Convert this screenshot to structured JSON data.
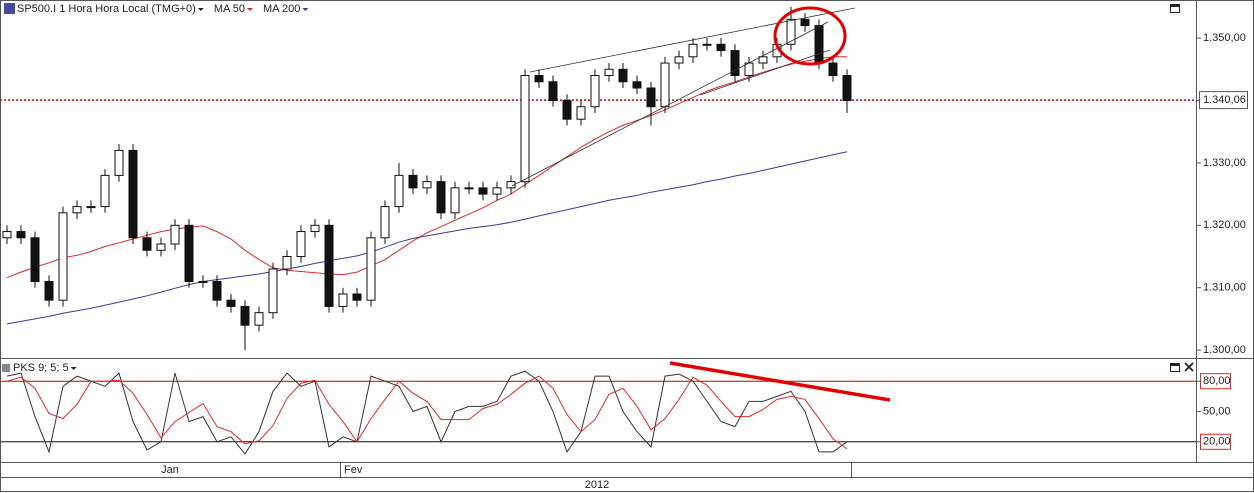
{
  "chart_data": [
    {
      "type": "candlestick",
      "title": "SP500.I 1 Hora Hora Local (TMG+0)",
      "open": [
        1318,
        1319,
        1318,
        1311,
        1308,
        1322,
        1323,
        1323,
        1328,
        1332,
        1318,
        1316,
        1317,
        1320,
        1311,
        1311,
        1308,
        1307,
        1304,
        1306,
        1313,
        1315,
        1319,
        1320,
        1307,
        1309,
        1308,
        1318,
        1323,
        1328,
        1326,
        1327,
        1322,
        1326,
        1326,
        1325,
        1326,
        1327,
        1344,
        1343,
        1340,
        1337,
        1339,
        1344,
        1345,
        1343,
        1342,
        1339,
        1346,
        1347,
        1349,
        1349,
        1348,
        1344,
        1346,
        1347,
        1349,
        1353,
        1352,
        1346,
        1344
      ],
      "high": [
        1320,
        1320,
        1319,
        1312,
        1323,
        1324,
        1324,
        1329,
        1333,
        1333,
        1319,
        1318,
        1321,
        1321,
        1312,
        1312,
        1309,
        1308,
        1307,
        1314,
        1316,
        1320,
        1321,
        1321,
        1310,
        1310,
        1319,
        1324,
        1330,
        1329,
        1328,
        1328,
        1327,
        1327,
        1327,
        1327,
        1328,
        1345,
        1345,
        1344,
        1341,
        1340,
        1345,
        1346,
        1346,
        1344,
        1343,
        1347,
        1348,
        1350,
        1350,
        1350,
        1349,
        1347,
        1348,
        1350,
        1355,
        1354,
        1353,
        1347,
        1345
      ],
      "low": [
        1317,
        1317,
        1310,
        1307,
        1307,
        1321,
        1322,
        1322,
        1327,
        1317,
        1315,
        1315,
        1316,
        1310,
        1310,
        1307,
        1306,
        1300,
        1303,
        1305,
        1312,
        1314,
        1318,
        1306,
        1306,
        1307,
        1307,
        1317,
        1322,
        1325,
        1325,
        1321,
        1321,
        1325,
        1324,
        1324,
        1325,
        1326,
        1342,
        1339,
        1336,
        1336,
        1338,
        1343,
        1342,
        1341,
        1336,
        1338,
        1345,
        1346,
        1348,
        1347,
        1343,
        1343,
        1345,
        1346,
        1348,
        1351,
        1345,
        1343,
        1338
      ],
      "close": [
        1319,
        1318,
        1311,
        1308,
        1322,
        1323,
        1323,
        1328,
        1332,
        1318,
        1316,
        1317,
        1320,
        1311,
        1311,
        1308,
        1307,
        1304,
        1306,
        1313,
        1315,
        1319,
        1320,
        1307,
        1309,
        1308,
        1318,
        1323,
        1328,
        1326,
        1327,
        1322,
        1326,
        1326,
        1325,
        1326,
        1327,
        1344,
        1343,
        1340,
        1337,
        1339,
        1344,
        1345,
        1343,
        1342,
        1339,
        1346,
        1347,
        1349,
        1349,
        1348,
        1344,
        1346,
        1347,
        1349,
        1353,
        1352,
        1346,
        1344,
        1340
      ],
      "series": [
        {
          "name": "MA 50",
          "color": "#e02828",
          "values": [
            1311.6,
            1312.5,
            1313.3,
            1314,
            1314.8,
            1315.2,
            1315.8,
            1316.6,
            1317.2,
            1317.8,
            1318.4,
            1319,
            1319.4,
            1319.7,
            1319.9,
            1319,
            1317.8,
            1316,
            1314.5,
            1313.2,
            1312.8,
            1312.6,
            1312.4,
            1312.2,
            1312.1,
            1312.5,
            1313.5,
            1314.5,
            1316,
            1317.5,
            1318.8,
            1319.8,
            1320.8,
            1321.8,
            1322.8,
            1324,
            1325,
            1326.5,
            1328,
            1329.5,
            1331,
            1332.5,
            1333.8,
            1335,
            1336,
            1336.8,
            1337.6,
            1338.5,
            1339.5,
            1340.5,
            1341.5,
            1342.3,
            1343,
            1343.8,
            1344.5,
            1345.2,
            1345.8,
            1346.3,
            1346.7,
            1347,
            1347
          ]
        },
        {
          "name": "MA 200",
          "color": "#3a3a9a",
          "values": [
            1304.2,
            1304.6,
            1305,
            1305.4,
            1305.9,
            1306.3,
            1306.7,
            1307.2,
            1307.7,
            1308.2,
            1308.7,
            1309.3,
            1309.9,
            1310.5,
            1311,
            1311.3,
            1311.6,
            1311.9,
            1312.2,
            1312.6,
            1313,
            1313.4,
            1313.9,
            1314.3,
            1314.7,
            1315.1,
            1315.7,
            1316.5,
            1317.3,
            1317.9,
            1318.3,
            1318.7,
            1319.1,
            1319.5,
            1319.8,
            1320.1,
            1320.5,
            1321,
            1321.5,
            1322,
            1322.5,
            1323,
            1323.5,
            1324,
            1324.4,
            1324.8,
            1325.3,
            1325.7,
            1326.1,
            1326.5,
            1327,
            1327.4,
            1327.9,
            1328.3,
            1328.8,
            1329.3,
            1329.8,
            1330.3,
            1330.8,
            1331.3,
            1331.8
          ]
        }
      ],
      "last_price": {
        "value": 1340.06,
        "label": "1.340,06"
      },
      "ylim": [
        1298.9,
        1356.1
      ],
      "yticks": [
        {
          "value": 1300,
          "label": "1.300,00"
        },
        {
          "value": 1310,
          "label": "1.310,00"
        },
        {
          "value": 1320,
          "label": "1.320,00"
        },
        {
          "value": 1330,
          "label": "1.330,00"
        },
        {
          "value": 1340,
          "label": "1.340,00"
        },
        {
          "value": 1350,
          "label": "1.350,00"
        }
      ],
      "months": [
        "Jan",
        "Fev"
      ],
      "year": "2012"
    },
    {
      "type": "line",
      "title": "PKS 9; 5; 5",
      "series": [
        {
          "color": "#333333",
          "values": [
            85,
            88,
            45,
            10,
            75,
            85,
            80,
            75,
            88,
            40,
            12,
            20,
            88,
            40,
            45,
            20,
            25,
            8,
            30,
            70,
            88,
            75,
            80,
            15,
            25,
            20,
            85,
            80,
            75,
            50,
            55,
            20,
            50,
            55,
            55,
            60,
            85,
            90,
            80,
            50,
            10,
            30,
            85,
            85,
            50,
            30,
            15,
            85,
            87,
            80,
            60,
            40,
            35,
            60,
            60,
            65,
            70,
            50,
            10,
            10,
            20
          ]
        },
        {
          "color": "#e02828",
          "values": [
            80,
            84,
            73,
            48,
            43,
            57,
            80,
            80,
            81,
            68,
            47,
            24,
            40,
            49,
            58,
            35,
            30,
            18,
            21,
            36,
            63,
            78,
            81,
            57,
            40,
            20,
            43,
            62,
            80,
            68,
            60,
            42,
            42,
            42,
            53,
            57,
            67,
            78,
            85,
            73,
            47,
            30,
            42,
            67,
            73,
            55,
            32,
            43,
            62,
            84,
            76,
            60,
            45,
            45,
            52,
            62,
            65,
            62,
            43,
            23,
            13
          ]
        }
      ],
      "ylim": [
        0,
        100
      ],
      "yticks": [
        {
          "value": 20,
          "label": "20,00"
        },
        {
          "value": 50,
          "label": "50,00"
        },
        {
          "value": 80,
          "label": "80,00"
        }
      ],
      "levels": [
        20,
        80
      ]
    }
  ]
}
